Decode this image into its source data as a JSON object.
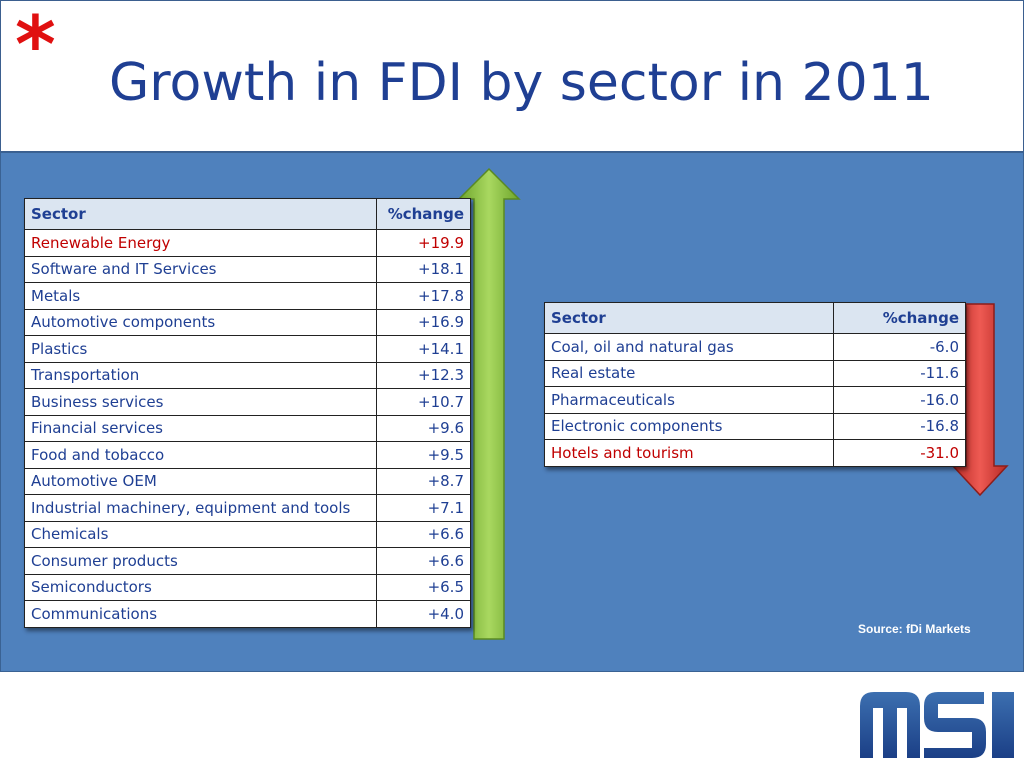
{
  "header": {
    "asterisk": "*",
    "title": "Growth in FDI by sector in 2011"
  },
  "growth_table": {
    "headers": {
      "sector": "Sector",
      "change": "%change"
    },
    "rows": [
      {
        "sector": "Renewable Energy",
        "change": "+19.9",
        "highlight": true
      },
      {
        "sector": "Software and IT Services",
        "change": "+18.1"
      },
      {
        "sector": "Metals",
        "change": "+17.8"
      },
      {
        "sector": "Automotive components",
        "change": "+16.9"
      },
      {
        "sector": "Plastics",
        "change": "+14.1"
      },
      {
        "sector": "Transportation",
        "change": "+12.3"
      },
      {
        "sector": "Business services",
        "change": "+10.7"
      },
      {
        "sector": "Financial services",
        "change": "+9.6"
      },
      {
        "sector": "Food and tobacco",
        "change": "+9.5"
      },
      {
        "sector": "Automotive OEM",
        "change": "+8.7"
      },
      {
        "sector": "Industrial machinery, equipment and tools",
        "change": "+7.1"
      },
      {
        "sector": "Chemicals",
        "change": "+6.6"
      },
      {
        "sector": "Consumer products",
        "change": "+6.6"
      },
      {
        "sector": "Semiconductors",
        "change": "+6.5"
      },
      {
        "sector": "Communications",
        "change": "+4.0"
      }
    ]
  },
  "decline_table": {
    "headers": {
      "sector": "Sector",
      "change": "%change"
    },
    "rows": [
      {
        "sector": "Coal, oil and natural gas",
        "change": "-6.0"
      },
      {
        "sector": "Real estate",
        "change": "-11.6"
      },
      {
        "sector": "Pharmaceuticals",
        "change": "-16.0"
      },
      {
        "sector": "Electronic components",
        "change": "-16.8"
      },
      {
        "sector": "Hotels and tourism",
        "change": "-31.0",
        "highlight": true
      }
    ]
  },
  "source": "Source: fDi Markets",
  "logo": {
    "text": "MSI"
  },
  "colors": {
    "title": "#1f3f93",
    "panel": "#4f81bd",
    "highlight": "#c00000",
    "up_arrow": "#8dc63f",
    "down_arrow": "#d9352f"
  },
  "icons": {
    "up": "up-arrow-icon",
    "down": "down-arrow-icon"
  }
}
